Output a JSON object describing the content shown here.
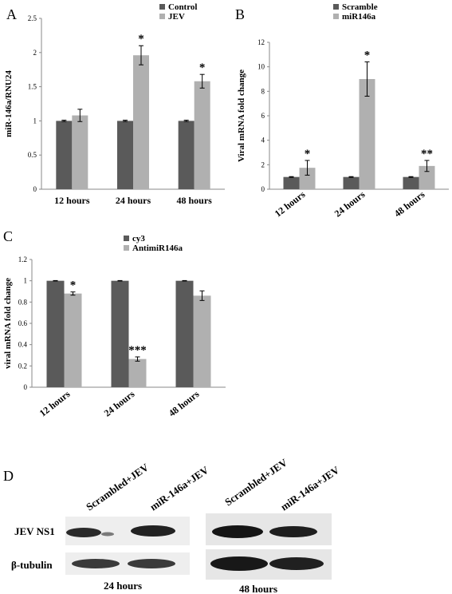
{
  "chart_data": [
    {
      "panel": "A",
      "type": "bar",
      "categories": [
        "12 hours",
        "24 hours",
        "48 hours"
      ],
      "ylabel": "miR-146a/RNU24",
      "ylim": [
        0,
        2.5
      ],
      "yticks": [
        "0",
        "0.5",
        "1",
        "1.5",
        "2",
        "2.5"
      ],
      "series": [
        {
          "name": "Control",
          "color": "#5a5a5a",
          "values": [
            1.0,
            1.0,
            1.0
          ],
          "errors": [
            0.01,
            0.01,
            0.01
          ]
        },
        {
          "name": "JEV",
          "color": "#b0b0b0",
          "values": [
            1.08,
            1.96,
            1.58
          ],
          "errors": [
            0.09,
            0.14,
            0.1
          ]
        }
      ],
      "annotations": [
        {
          "category": 1,
          "series": 1,
          "text": "*"
        },
        {
          "category": 2,
          "series": 1,
          "text": "*"
        }
      ],
      "legend_position": "top-right"
    },
    {
      "panel": "B",
      "type": "bar",
      "categories": [
        "12 hours",
        "24 hours",
        "48 hours"
      ],
      "ylabel": "Viral  mRNA fold change",
      "ylim": [
        0,
        12
      ],
      "yticks": [
        "0",
        "2",
        "4",
        "6",
        "8",
        "10",
        "12"
      ],
      "series": [
        {
          "name": "Scramble",
          "color": "#5a5a5a",
          "values": [
            1.0,
            1.0,
            1.0
          ],
          "errors": [
            0.03,
            0.03,
            0.03
          ]
        },
        {
          "name": "miR146a",
          "color": "#b0b0b0",
          "values": [
            1.75,
            9.0,
            1.9
          ],
          "errors": [
            0.6,
            1.4,
            0.45
          ]
        }
      ],
      "annotations": [
        {
          "category": 0,
          "series": 1,
          "text": "*"
        },
        {
          "category": 1,
          "series": 1,
          "text": "*"
        },
        {
          "category": 2,
          "series": 1,
          "text": "**"
        }
      ],
      "legend_position": "top-right"
    },
    {
      "panel": "C",
      "type": "bar",
      "categories": [
        "12 hours",
        "24 hours",
        "48 hours"
      ],
      "ylabel": "viral mRNA fold change",
      "ylim": [
        0,
        1.2
      ],
      "yticks": [
        "0",
        "0.2",
        "0.4",
        "0.6",
        "0.8",
        "1",
        "1.2"
      ],
      "series": [
        {
          "name": "cy3",
          "color": "#5a5a5a",
          "values": [
            1.0,
            1.0,
            1.0
          ],
          "errors": [
            0.002,
            0.002,
            0.002
          ]
        },
        {
          "name": "AntimiR146a",
          "color": "#b0b0b0",
          "values": [
            0.88,
            0.265,
            0.86
          ],
          "errors": [
            0.015,
            0.02,
            0.045
          ]
        }
      ],
      "annotations": [
        {
          "category": 0,
          "series": 1,
          "text": "*"
        },
        {
          "category": 1,
          "series": 1,
          "text": "***"
        }
      ],
      "legend_position": "top"
    }
  ],
  "blot": {
    "panel": "D",
    "lanes": [
      "Scrambled+JEV",
      "miR-146a+JEV",
      "Scrambled+JEV",
      "miR-146a+JEV"
    ],
    "rows": [
      "JEV NS1",
      "β-tubulin"
    ],
    "timepoints": [
      "24 hours",
      "48 hours"
    ]
  }
}
